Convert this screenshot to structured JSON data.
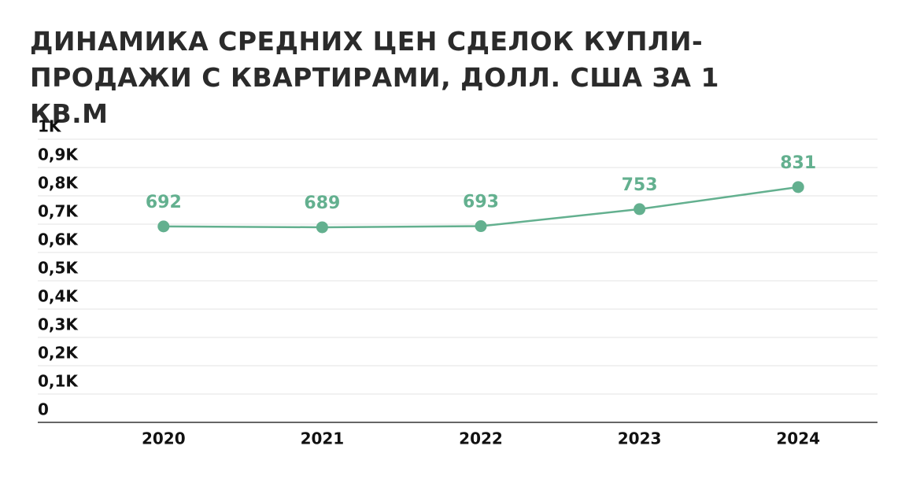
{
  "chart_data": {
    "type": "line",
    "title": "ДИНАМИКА СРЕДНИХ ЦЕН СДЕЛОК КУПЛИ-ПРОДАЖИ С КВАРТИРАМИ, ДОЛЛ. США ЗА 1 КВ.М",
    "categories": [
      "2020",
      "2021",
      "2022",
      "2023",
      "2024"
    ],
    "values": [
      692,
      689,
      693,
      753,
      831
    ],
    "color": "#63b08f",
    "ylim": [
      0,
      1000
    ],
    "yticks": [
      0,
      {
        "value": 100,
        "label": "0,1K"
      },
      {
        "value": 200,
        "label": "0,2K"
      },
      {
        "value": 300,
        "label": "0,3K"
      },
      {
        "value": 400,
        "label": "0,4K"
      },
      {
        "value": 500,
        "label": "0,5K"
      },
      {
        "value": 600,
        "label": "0,6K"
      },
      {
        "value": 700,
        "label": "0,7K"
      },
      {
        "value": 800,
        "label": "0,8K"
      },
      {
        "value": 900,
        "label": "0,9K"
      },
      {
        "value": 1000,
        "label": "1K"
      }
    ],
    "grid": true
  }
}
